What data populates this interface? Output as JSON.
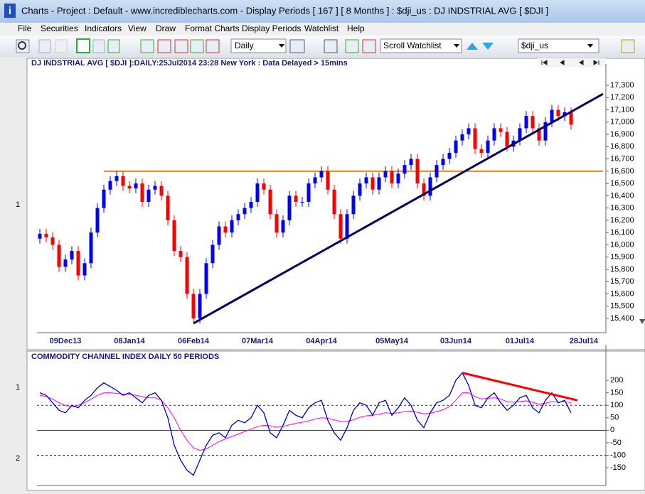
{
  "window": {
    "title": "Charts - Project : Default - www.incrediblecharts.com - Display Periods  [ 167 ]  [ 8 Months ] : $dji_us : DJ INDSTRIAL AVG  [ $DJI ]"
  },
  "menu": [
    "File",
    "Securities",
    "Indicators",
    "View",
    "Draw",
    "Format Charts",
    "Display Periods",
    "Watchlist",
    "Help"
  ],
  "toolbar": {
    "period": "Daily",
    "watchlist": "Scroll Watchlist",
    "security": "$dji_us"
  },
  "panel_markers": [
    "1",
    "1",
    "2"
  ],
  "chart_data": [
    {
      "type": "candlestick",
      "title": "DJ INDSTRIAL AVG [ $DJI ]:DAILY:25Jul2014 23:28 New York : Data Delayed > 15mins",
      "categories": [
        null,
        null,
        null,
        null,
        "09Dec13",
        null,
        null,
        null,
        null,
        null,
        null,
        null,
        null,
        null,
        "08Jan14",
        null,
        null,
        null,
        null,
        null,
        null,
        null,
        null,
        null,
        "06Feb14",
        null,
        null,
        null,
        null,
        null,
        null,
        null,
        null,
        null,
        "07Mar14",
        null,
        null,
        null,
        null,
        null,
        null,
        null,
        null,
        null,
        "04Apr14",
        null,
        null,
        null,
        null,
        null,
        null,
        null,
        null,
        null,
        null,
        "05May14",
        null,
        null,
        null,
        null,
        null,
        null,
        null,
        null,
        null,
        "03Jun14",
        null,
        null,
        null,
        null,
        null,
        null,
        null,
        null,
        null,
        "01Jul14",
        null,
        null,
        null,
        null,
        null,
        null,
        null,
        null,
        null,
        "28Jul14"
      ],
      "open": [
        16050,
        16090,
        16060,
        16000,
        15820,
        15880,
        15950,
        15750,
        15850,
        16100,
        16300,
        16450,
        16520,
        16560,
        16480,
        16460,
        16500,
        16350,
        16450,
        16480,
        16400,
        16200,
        15950,
        15900,
        15600,
        15400,
        15600,
        15850,
        16000,
        16150,
        16100,
        16200,
        16250,
        16300,
        16350,
        16500,
        16450,
        16250,
        16100,
        16200,
        16400,
        16350,
        16350,
        16500,
        16550,
        16600,
        16450,
        16250,
        16050,
        16250,
        16400,
        16500,
        16550,
        16450,
        16550,
        16600,
        16500,
        16580,
        16650,
        16700,
        16500,
        16400,
        16550,
        16650,
        16700,
        16750,
        16850,
        16900,
        16950,
        16780,
        16750,
        16850,
        16950,
        16920,
        16800,
        16850,
        16950,
        17050,
        16950,
        16850,
        17000,
        17100,
        17050,
        17080,
        null,
        null
      ],
      "high": [
        16130,
        16130,
        16100,
        16040,
        15920,
        15990,
        15990,
        15890,
        16140,
        16340,
        16490,
        16560,
        16600,
        16600,
        16520,
        16540,
        16540,
        16490,
        16520,
        16520,
        16440,
        16240,
        15990,
        15940,
        15640,
        15640,
        15890,
        16040,
        16190,
        16190,
        16240,
        16290,
        16340,
        16390,
        16540,
        16540,
        16490,
        16290,
        16240,
        16440,
        16440,
        16390,
        16540,
        16590,
        16640,
        16640,
        16490,
        16290,
        16290,
        16440,
        16540,
        16590,
        16590,
        16590,
        16640,
        16640,
        16620,
        16690,
        16740,
        16740,
        16540,
        16590,
        16690,
        16740,
        16790,
        16890,
        16940,
        16990,
        16990,
        16820,
        16890,
        16990,
        16990,
        16960,
        16890,
        16990,
        17090,
        17090,
        16990,
        17040,
        17140,
        17140,
        17120,
        17120,
        null,
        null
      ],
      "low": [
        16010,
        16020,
        15960,
        15780,
        15780,
        15840,
        15710,
        15710,
        15810,
        16060,
        16260,
        16410,
        16480,
        16440,
        16420,
        16420,
        16310,
        16310,
        16410,
        16360,
        16160,
        15910,
        15860,
        15560,
        15360,
        15360,
        15560,
        15810,
        15960,
        16060,
        16060,
        16160,
        16210,
        16260,
        16310,
        16410,
        16210,
        16060,
        16060,
        16160,
        16310,
        16310,
        16310,
        16460,
        16510,
        16410,
        16210,
        16010,
        16010,
        16210,
        16360,
        16460,
        16410,
        16410,
        16510,
        16460,
        16460,
        16540,
        16610,
        16460,
        16360,
        16360,
        16510,
        16610,
        16660,
        16710,
        16810,
        16860,
        16740,
        16710,
        16710,
        16810,
        16880,
        16760,
        16760,
        16810,
        16910,
        16910,
        16810,
        16810,
        16960,
        17010,
        17010,
        16940,
        null,
        null
      ],
      "close": [
        16090,
        16060,
        16000,
        15820,
        15880,
        15950,
        15750,
        15850,
        16100,
        16300,
        16450,
        16520,
        16560,
        16480,
        16460,
        16500,
        16350,
        16450,
        16480,
        16400,
        16200,
        15950,
        15900,
        15600,
        15400,
        15600,
        15850,
        16000,
        16150,
        16100,
        16200,
        16250,
        16300,
        16350,
        16500,
        16450,
        16250,
        16100,
        16200,
        16400,
        16350,
        16350,
        16500,
        16550,
        16600,
        16450,
        16250,
        16050,
        16250,
        16400,
        16500,
        16550,
        16450,
        16550,
        16600,
        16500,
        16580,
        16650,
        16700,
        16500,
        16400,
        16550,
        16650,
        16700,
        16750,
        16850,
        16900,
        16950,
        16780,
        16750,
        16850,
        16950,
        16920,
        16800,
        16850,
        16950,
        17050,
        16950,
        16850,
        17000,
        17100,
        17050,
        17080,
        16980,
        null,
        null
      ],
      "up_color": "#0000ff",
      "down_color": "#ff0000",
      "ylim": [
        15284,
        17416
      ],
      "yticks": [
        {
          "value": 15400,
          "label": "15,400"
        },
        {
          "value": 15500,
          "label": "15,500"
        },
        {
          "value": 15600,
          "label": "15,600"
        },
        {
          "value": 15700,
          "label": "15,700"
        },
        {
          "value": 15800,
          "label": "15,800"
        },
        {
          "value": 15900,
          "label": "15,900"
        },
        {
          "value": 16000,
          "label": "16,000"
        },
        {
          "value": 16100,
          "label": "16,100"
        },
        {
          "value": 16200,
          "label": "16,200"
        },
        {
          "value": 16300,
          "label": "16,300"
        },
        {
          "value": 16400,
          "label": "16,400"
        },
        {
          "value": 16500,
          "label": "16,500"
        },
        {
          "value": 16600,
          "label": "16,600"
        },
        {
          "value": 16700,
          "label": "16,700"
        },
        {
          "value": 16800,
          "label": "16,800"
        },
        {
          "value": 16900,
          "label": "16,900"
        },
        {
          "value": 17000,
          "label": "17,000"
        },
        {
          "value": 17100,
          "label": "17,100"
        },
        {
          "value": 17200,
          "label": "17,200"
        },
        {
          "value": 17300,
          "label": "17,300"
        }
      ],
      "hlines": [
        {
          "value": 16600,
          "start": 10,
          "end": 88,
          "color": "#ff8000"
        }
      ],
      "trendlines": [
        {
          "start": 24,
          "end": 88,
          "values": [
            15360,
            17230
          ],
          "color": "#000066"
        }
      ]
    },
    {
      "type": "line",
      "title": "COMMODITY CHANNEL INDEX DAILY 50 PERIODS",
      "series": [
        {
          "color": "#0000cc",
          "values": [
            150,
            140,
            110,
            80,
            70,
            100,
            90,
            120,
            140,
            170,
            190,
            175,
            160,
            140,
            150,
            130,
            110,
            140,
            150,
            120,
            50,
            -60,
            -120,
            -160,
            -180,
            -120,
            -60,
            -20,
            -10,
            -30,
            20,
            40,
            30,
            50,
            100,
            70,
            -10,
            -30,
            20,
            80,
            60,
            50,
            90,
            110,
            120,
            40,
            -10,
            -40,
            10,
            80,
            110,
            100,
            60,
            110,
            120,
            60,
            90,
            130,
            100,
            40,
            10,
            70,
            110,
            120,
            140,
            200,
            230,
            180,
            100,
            90,
            130,
            150,
            110,
            80,
            100,
            130,
            140,
            90,
            70,
            120,
            150,
            110,
            120,
            70,
            null,
            null
          ]
        },
        {
          "color": "#ff00ff",
          "values": [
            140,
            135,
            125,
            110,
            100,
            95,
            100,
            110,
            125,
            140,
            150,
            150,
            148,
            145,
            145,
            140,
            135,
            130,
            130,
            120,
            90,
            50,
            0,
            -40,
            -70,
            -80,
            -75,
            -60,
            -45,
            -35,
            -25,
            -15,
            -5,
            5,
            15,
            20,
            18,
            12,
            15,
            22,
            28,
            32,
            38,
            45,
            50,
            48,
            42,
            35,
            35,
            42,
            52,
            58,
            60,
            64,
            70,
            68,
            70,
            75,
            76,
            72,
            66,
            68,
            75,
            82,
            95,
            120,
            150,
            150,
            135,
            125,
            128,
            130,
            125,
            115,
            112,
            115,
            118,
            112,
            105,
            108,
            115,
            112,
            115,
            110,
            null,
            null
          ]
        }
      ],
      "ylim": [
        -221,
        314
      ],
      "yticks": [
        -150,
        -100,
        -50,
        0,
        50,
        100,
        150,
        200
      ],
      "reference_lines": [
        {
          "value": 100,
          "dashed": true
        },
        {
          "value": 0,
          "dashed": false
        },
        {
          "value": -100,
          "dashed": true
        }
      ],
      "trendlines": [
        {
          "start": 66,
          "end": 84,
          "values": [
            230,
            120
          ],
          "color": "#ff0000"
        }
      ]
    }
  ]
}
